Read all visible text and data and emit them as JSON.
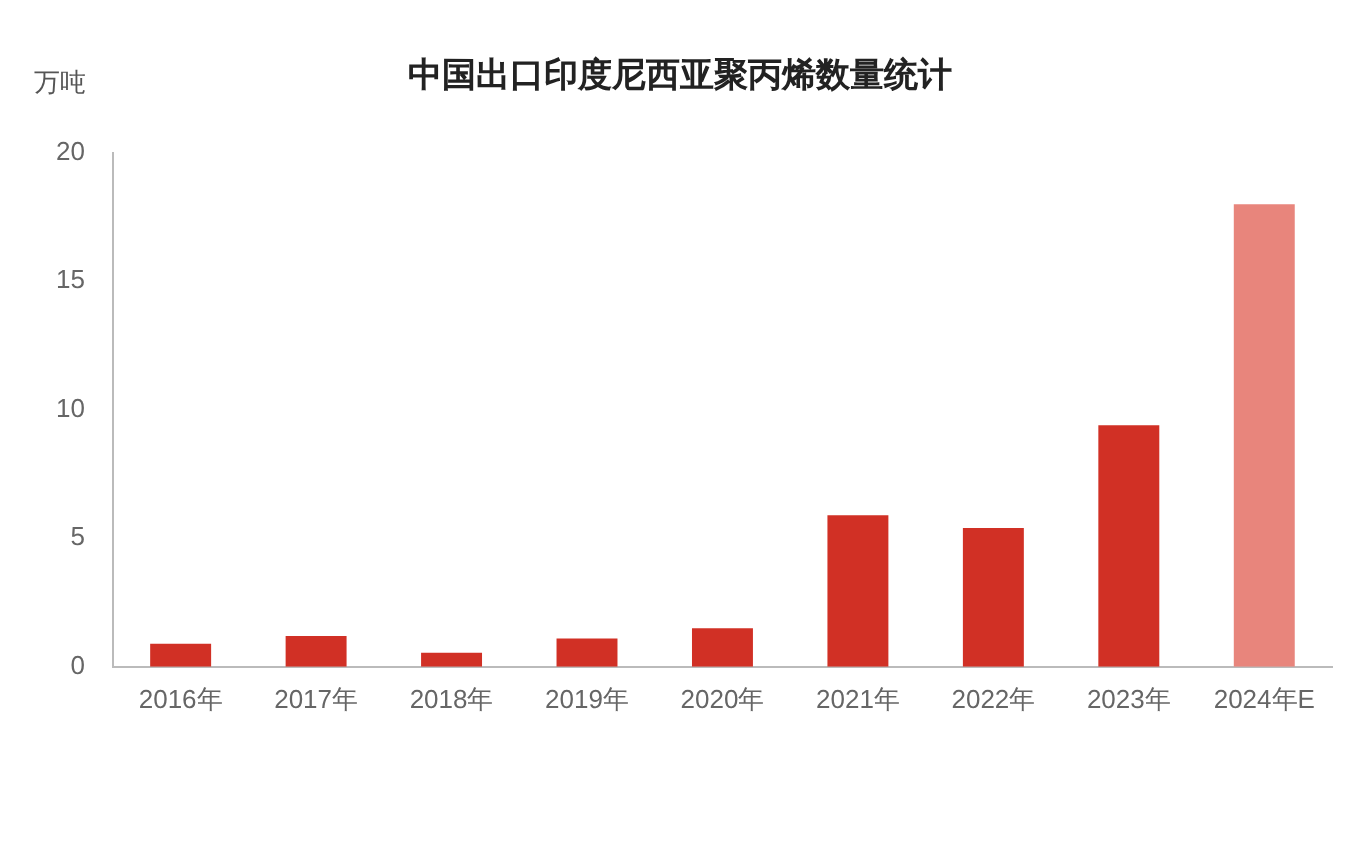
{
  "chart_data": {
    "type": "bar",
    "title": "中国出口印度尼西亚聚丙烯数量统计",
    "ylabel": "万吨",
    "categories": [
      "2016年",
      "2017年",
      "2018年",
      "2019年",
      "2020年",
      "2021年",
      "2022年",
      "2023年",
      "2024年E"
    ],
    "values": [
      0.9,
      1.2,
      0.55,
      1.1,
      1.5,
      5.9,
      5.4,
      9.4,
      18
    ],
    "colors": [
      "#d13025",
      "#d13025",
      "#d13025",
      "#d13025",
      "#d13025",
      "#d13025",
      "#d13025",
      "#d13025",
      "#e8857c"
    ],
    "ylim": [
      0,
      20
    ],
    "yticks": [
      0,
      5,
      10,
      15,
      20
    ],
    "grid": false,
    "legend": false
  }
}
